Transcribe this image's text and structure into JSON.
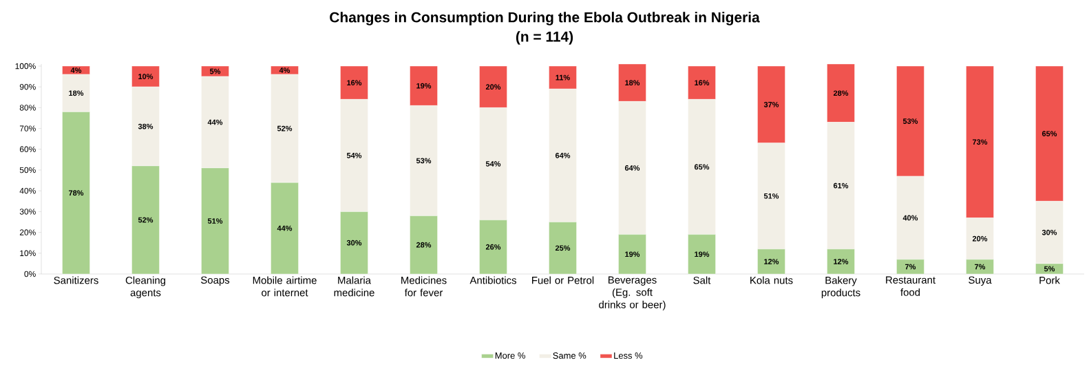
{
  "chart_data": {
    "type": "bar",
    "stacked": true,
    "title": "Changes in Consumption During the Ebola Outbreak in Nigeria",
    "subtitle": "(n = 114)",
    "categories": [
      "Sanitizers",
      "Cleaning agents",
      "Soaps",
      "Mobile airtime or internet",
      "Malaria medicine",
      "Medicines for fever",
      "Antibiotics",
      "Fuel or Petrol",
      "Beverages (Eg. soft drinks or beer)",
      "Salt",
      "Kola nuts",
      "Bakery products",
      "Restaurant food",
      "Suya",
      "Pork"
    ],
    "series": [
      {
        "name": "More %",
        "color": "#a9d18e",
        "values": [
          78,
          52,
          51,
          44,
          30,
          28,
          26,
          25,
          19,
          19,
          12,
          12,
          7,
          7,
          5
        ],
        "value_labels": [
          "78%",
          "52%",
          "51%",
          "44%",
          "30%",
          "28%",
          "26%",
          "25%",
          "19%",
          "19%",
          "12%",
          "12%",
          "7%",
          "7%",
          "5%"
        ]
      },
      {
        "name": "Same %",
        "color": "#f2efe6",
        "values": [
          18,
          38,
          44,
          52,
          54,
          53,
          54,
          64,
          64,
          65,
          51,
          61,
          40,
          20,
          30
        ],
        "value_labels": [
          "18%",
          "38%",
          "44%",
          "52%",
          "54%",
          "53%",
          "54%",
          "64%",
          "64%",
          "65%",
          "51%",
          "61%",
          "40%",
          "20%",
          "30%"
        ]
      },
      {
        "name": "Less %",
        "color": "#f0544f",
        "values": [
          4,
          10,
          5,
          4,
          16,
          19,
          20,
          11,
          18,
          16,
          37,
          28,
          53,
          73,
          65
        ],
        "value_labels": [
          "4%",
          "10%",
          "5%",
          "4%",
          "16%",
          "19%",
          "20%",
          "11%",
          "18%",
          "16%",
          "37%",
          "28%",
          "53%",
          "73%",
          "65%"
        ]
      }
    ],
    "ylim": [
      0,
      101
    ],
    "yticks": [
      {
        "value": 0,
        "label": "0%"
      },
      {
        "value": 10,
        "label": "10%"
      },
      {
        "value": 20,
        "label": "20%"
      },
      {
        "value": 30,
        "label": "30%"
      },
      {
        "value": 40,
        "label": "40%"
      },
      {
        "value": 50,
        "label": "50%"
      },
      {
        "value": 60,
        "label": "60%"
      },
      {
        "value": 70,
        "label": "70%"
      },
      {
        "value": 80,
        "label": "80%"
      },
      {
        "value": 90,
        "label": "90%"
      },
      {
        "value": 100,
        "label": "100%"
      }
    ],
    "legend": "bottom"
  }
}
